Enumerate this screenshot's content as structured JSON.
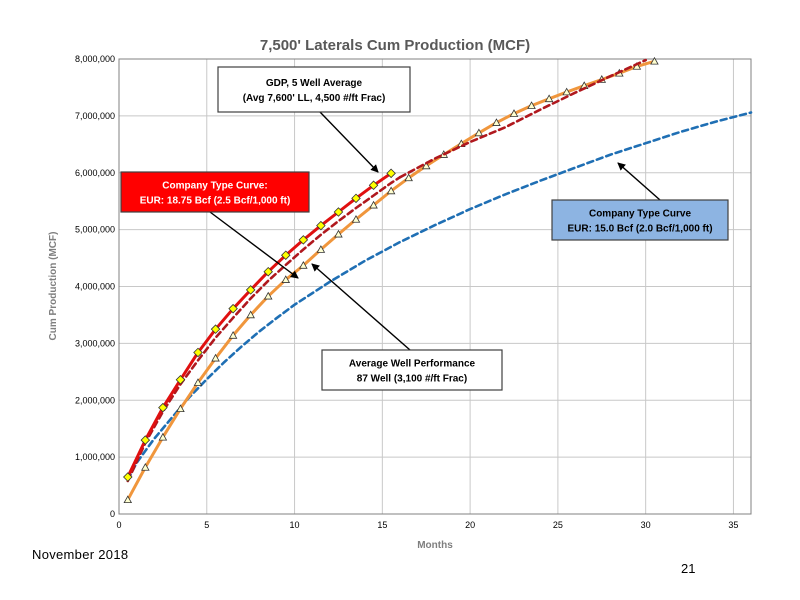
{
  "chart_data": {
    "type": "line",
    "title": "7,500' Laterals Cum Production (MCF)",
    "xlabel": "Months",
    "ylabel": "Cum Production (MCF)",
    "xlim": [
      0,
      36
    ],
    "ylim": [
      0,
      8000000
    ],
    "x_ticks": [
      0,
      5,
      10,
      15,
      20,
      25,
      30,
      35
    ],
    "y_ticks": [
      0,
      1000000,
      2000000,
      3000000,
      4000000,
      5000000,
      6000000,
      7000000,
      8000000
    ],
    "y_tick_labels": [
      "0",
      "1,000,000",
      "2,000,000",
      "3,000,000",
      "4,000,000",
      "5,000,000",
      "6,000,000",
      "7,000,000",
      "8,000,000"
    ],
    "grid": true,
    "series": [
      {
        "key": "gdp",
        "style": "solid-marker-diamond",
        "color": "#e01010",
        "marker_fill": "#ffff00",
        "x": [
          0.5,
          1.5,
          2.5,
          3.5,
          4.5,
          5.5,
          6.5,
          7.5,
          8.5,
          9.5,
          10.5,
          11.5,
          12.5,
          13.5,
          14.5,
          15.5
        ],
        "values": [
          650000,
          1300000,
          1870000,
          2360000,
          2840000,
          3250000,
          3610000,
          3940000,
          4260000,
          4550000,
          4820000,
          5070000,
          5310000,
          5550000,
          5780000,
          5990000
        ]
      },
      {
        "key": "company_18_75",
        "style": "dashed",
        "color": "#b0181e",
        "x": [
          0.5,
          1.5,
          2.5,
          3.5,
          4.5,
          5.5,
          6.5,
          7.5,
          8.5,
          9.5,
          10.5,
          11.5,
          12.5,
          13.5,
          14.5,
          15.5,
          16
        ],
        "values": [
          580000,
          1250000,
          1800000,
          2280000,
          2700000,
          3100000,
          3450000,
          3790000,
          4100000,
          4380000,
          4650000,
          4910000,
          5150000,
          5380000,
          5600000,
          5820000,
          5920000
        ]
      },
      {
        "key": "average_well",
        "style": "solid-marker-triangle",
        "color": "#f0963c",
        "x": [
          0.5,
          1.5,
          2.5,
          3.5,
          4.5,
          5.5,
          6.5,
          7.5,
          8.5,
          9.5,
          10.5,
          11.5,
          12.5,
          13.5,
          14.5,
          15.5,
          16.5,
          17.5,
          18.5,
          19.5,
          20.5,
          21.5,
          22.5,
          23.5,
          24.5,
          25.5,
          26.5,
          27.5,
          28.5,
          29.5,
          30.5
        ],
        "values": [
          250000,
          820000,
          1350000,
          1850000,
          2310000,
          2740000,
          3140000,
          3500000,
          3830000,
          4120000,
          4370000,
          4650000,
          4920000,
          5180000,
          5430000,
          5680000,
          5910000,
          6120000,
          6320000,
          6510000,
          6700000,
          6880000,
          7040000,
          7180000,
          7300000,
          7420000,
          7530000,
          7640000,
          7750000,
          7870000,
          7960000
        ]
      },
      {
        "key": "company_18_75_ext",
        "style": "dashed",
        "color": "#b0181e",
        "x": [
          16,
          18,
          20,
          22,
          24,
          26,
          28,
          30
        ],
        "values": [
          5920000,
          6250000,
          6540000,
          6800000,
          7110000,
          7410000,
          7700000,
          7980000
        ]
      },
      {
        "key": "company_15_0",
        "style": "dashed",
        "color": "#1f6fb4",
        "x": [
          0.5,
          1,
          2,
          3,
          4,
          5,
          6,
          7,
          8,
          9,
          10,
          12,
          14,
          16,
          18,
          20,
          22,
          24,
          26,
          28,
          30,
          32,
          34,
          36
        ],
        "values": [
          600000,
          900000,
          1320000,
          1690000,
          2050000,
          2370000,
          2670000,
          2950000,
          3210000,
          3450000,
          3680000,
          4080000,
          4450000,
          4780000,
          5080000,
          5360000,
          5620000,
          5860000,
          6090000,
          6320000,
          6520000,
          6720000,
          6900000,
          7060000
        ]
      }
    ],
    "annotations": [
      {
        "key": "gdp",
        "lines": [
          "GDP, 5 Well Average",
          "(Avg 7,600' LL, 4,500 #/ft Frac)"
        ]
      },
      {
        "key": "company_18_75",
        "lines": [
          "Company Type Curve:",
          "EUR: 18.75 Bcf (2.5 Bcf/1,000 ft)"
        ]
      },
      {
        "key": "company_15_0",
        "lines": [
          "Company Type Curve",
          "EUR: 15.0 Bcf (2.0 Bcf/1,000 ft)"
        ]
      },
      {
        "key": "average_well",
        "lines": [
          "Average Well Performance",
          "87 Well (3,100 #/ft Frac)"
        ]
      }
    ]
  },
  "footer": {
    "date": "November 2018",
    "page_number": "21"
  }
}
